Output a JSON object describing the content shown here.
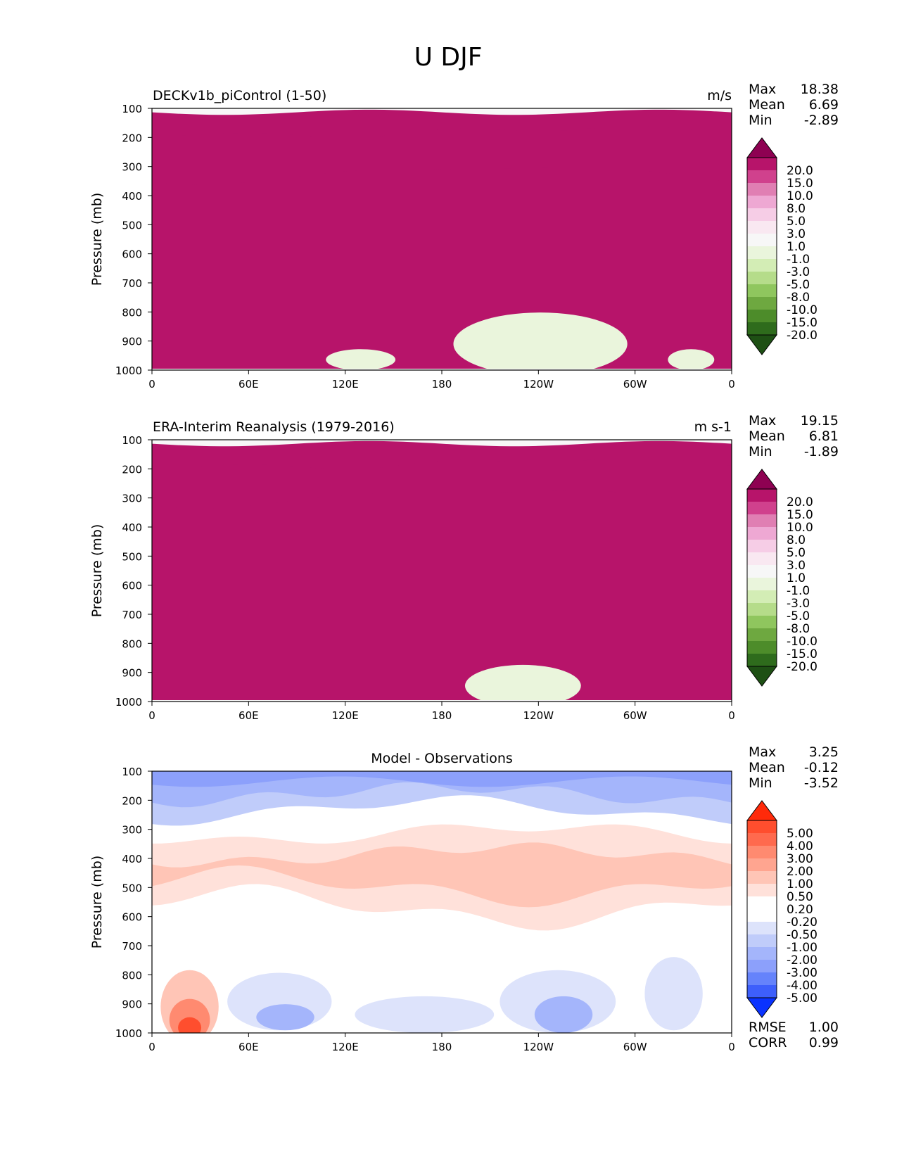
{
  "figure": {
    "title": "U DJF"
  },
  "chart_data": [
    {
      "type": "heatmap",
      "title": "DECKv1b_piControl (1-50)",
      "units": "m/s",
      "ylabel": "Pressure (mb)",
      "x_ticks": [
        "0",
        "60E",
        "120E",
        "180",
        "120W",
        "60W",
        "0"
      ],
      "y_ticks": [
        "100",
        "200",
        "300",
        "400",
        "500",
        "600",
        "700",
        "800",
        "900",
        "1000"
      ],
      "ylim": [
        1000,
        100
      ],
      "stats": {
        "max_label": "Max",
        "max": "18.38",
        "mean_label": "Mean",
        "mean": "6.69",
        "min_label": "Min",
        "min": "-2.89"
      },
      "colorbar": {
        "labels": [
          "20.0",
          "15.0",
          "10.0",
          "8.0",
          "5.0",
          "3.0",
          "1.0",
          "-1.0",
          "-3.0",
          "-5.0",
          "-8.0",
          "-10.0",
          "-15.0",
          "-20.0"
        ],
        "colors": [
          "#8e0152",
          "#b7146a",
          "#d0418d",
          "#e07fb3",
          "#eea8d3",
          "#f6cde6",
          "#f9e8f1",
          "#f7f7f7",
          "#eaf5dc",
          "#d3edb5",
          "#b5dc8a",
          "#8fc65e",
          "#6ea840",
          "#4d8c2a",
          "#2e6b1c",
          "#1e5014"
        ]
      }
    },
    {
      "type": "heatmap",
      "title": "ERA-Interim Reanalysis (1979-2016)",
      "units": "m s-1",
      "ylabel": "Pressure (mb)",
      "x_ticks": [
        "0",
        "60E",
        "120E",
        "180",
        "120W",
        "60W",
        "0"
      ],
      "y_ticks": [
        "100",
        "200",
        "300",
        "400",
        "500",
        "600",
        "700",
        "800",
        "900",
        "1000"
      ],
      "ylim": [
        1000,
        100
      ],
      "stats": {
        "max_label": "Max",
        "max": "19.15",
        "mean_label": "Mean",
        "mean": "6.81",
        "min_label": "Min",
        "min": "-1.89"
      },
      "colorbar": {
        "labels": [
          "20.0",
          "15.0",
          "10.0",
          "8.0",
          "5.0",
          "3.0",
          "1.0",
          "-1.0",
          "-3.0",
          "-5.0",
          "-8.0",
          "-10.0",
          "-15.0",
          "-20.0"
        ],
        "colors": [
          "#8e0152",
          "#b7146a",
          "#d0418d",
          "#e07fb3",
          "#eea8d3",
          "#f6cde6",
          "#f9e8f1",
          "#f7f7f7",
          "#eaf5dc",
          "#d3edb5",
          "#b5dc8a",
          "#8fc65e",
          "#6ea840",
          "#4d8c2a",
          "#2e6b1c",
          "#1e5014"
        ]
      }
    },
    {
      "type": "heatmap",
      "title": "Model - Observations",
      "units": "",
      "ylabel": "Pressure (mb)",
      "x_ticks": [
        "0",
        "60E",
        "120E",
        "180",
        "120W",
        "60W",
        "0"
      ],
      "y_ticks": [
        "100",
        "200",
        "300",
        "400",
        "500",
        "600",
        "700",
        "800",
        "900",
        "1000"
      ],
      "ylim": [
        1000,
        100
      ],
      "stats": {
        "max_label": "Max",
        "max": "3.25",
        "mean_label": "Mean",
        "mean": "-0.12",
        "min_label": "Min",
        "min": "-3.52"
      },
      "extra_stats": {
        "rmse_label": "RMSE",
        "rmse": "1.00",
        "corr_label": "CORR",
        "corr": "0.99"
      },
      "colorbar": {
        "labels": [
          "5.00",
          "4.00",
          "3.00",
          "2.00",
          "1.00",
          "0.50",
          "0.20",
          "-0.20",
          "-0.50",
          "-1.00",
          "-2.00",
          "-3.00",
          "-4.00",
          "-5.00"
        ],
        "colors": [
          "#ff2a0a",
          "#ff4e2e",
          "#ff6a4e",
          "#ff8a70",
          "#ffa590",
          "#ffc5b6",
          "#ffe1da",
          "#ffffff",
          "#ffffff",
          "#dde3fb",
          "#c0ccfa",
          "#a4b5fb",
          "#8ca0fb",
          "#6583fb",
          "#3d5ffb",
          "#0a33ff"
        ]
      }
    }
  ]
}
